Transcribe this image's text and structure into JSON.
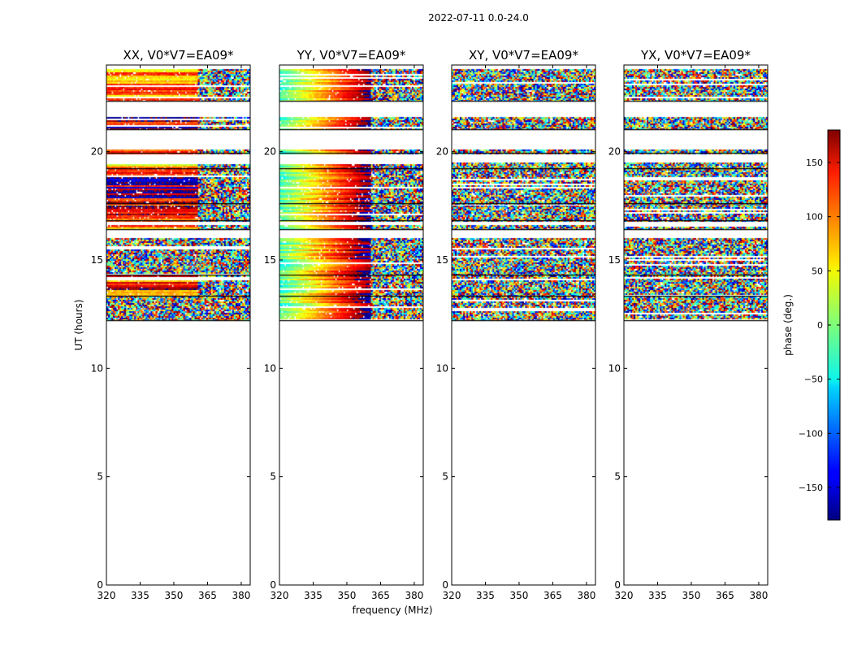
{
  "chart_data": {
    "type": "heatmap",
    "suptitle": "2022-07-11 0.0-24.0",
    "xlabel": "frequency (MHz)",
    "ylabel": "UT (hours)",
    "xlim": [
      320,
      384
    ],
    "ylim": [
      0,
      24
    ],
    "xticks": [
      320,
      335,
      350,
      365,
      380
    ],
    "yticks": [
      0,
      5,
      10,
      15,
      20
    ],
    "colorbar": {
      "label": "phase (deg.)",
      "range": [
        -180,
        180
      ],
      "ticks": [
        150,
        100,
        50,
        0,
        -50,
        -100,
        -150
      ],
      "colormap": "jet"
    },
    "data_hours": [
      [
        12.2,
        13.3
      ],
      [
        13.3,
        14.3
      ],
      [
        14.3,
        16.0
      ],
      [
        16.4,
        16.6
      ],
      [
        16.8,
        17.6
      ],
      [
        17.6,
        19.2
      ],
      [
        19.2,
        19.5
      ],
      [
        19.9,
        20.1
      ],
      [
        21.0,
        21.6
      ],
      [
        22.3,
        23.8
      ]
    ],
    "panels": [
      {
        "title": "XX, V0*V7=EA09*",
        "pol": "XX"
      },
      {
        "title": "YY, V0*V7=EA09*",
        "pol": "YY"
      },
      {
        "title": "XY, V0*V7=EA09*",
        "pol": "XY"
      },
      {
        "title": "YX, V0*V7=EA09*",
        "pol": "YX"
      }
    ]
  }
}
